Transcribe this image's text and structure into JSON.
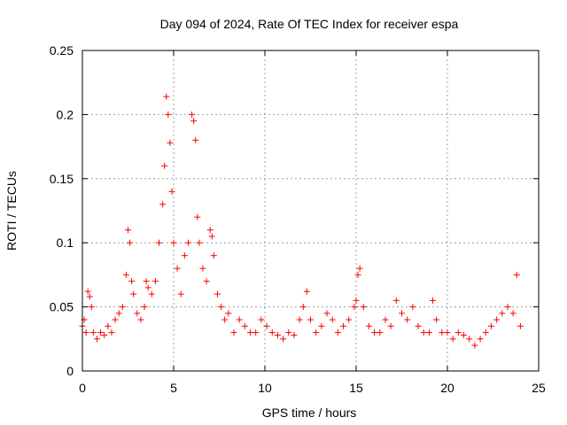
{
  "chart_data": {
    "type": "scatter",
    "title": "Day 094 of 2024, Rate Of TEC Index for receiver espa",
    "xlabel": "GPS time / hours",
    "ylabel": "ROTI / TECUs",
    "xlim": [
      0,
      25
    ],
    "ylim": [
      0,
      0.25
    ],
    "xticks": [
      "0",
      "5",
      "10",
      "15",
      "20",
      "25"
    ],
    "yticks": [
      "0",
      "0.05",
      "0.1",
      "0.15",
      "0.2",
      "0.25"
    ],
    "grid": true,
    "marker": "plus",
    "color": "#ff0000",
    "series": [
      {
        "x": [
          0.0,
          0.1,
          0.2,
          0.3,
          0.4,
          0.5,
          0.6,
          0.8,
          1.0,
          1.2,
          1.4,
          1.6,
          1.8,
          2.0,
          2.2,
          2.4,
          2.5,
          2.6,
          2.7,
          2.8,
          3.0,
          3.2,
          3.4,
          3.5,
          3.6,
          3.8,
          4.0,
          4.2,
          4.4,
          4.5,
          4.6,
          4.7,
          4.8,
          4.9,
          5.0,
          5.2,
          5.4,
          5.6,
          5.8,
          6.0,
          6.1,
          6.2,
          6.3,
          6.4,
          6.6,
          6.8,
          7.0,
          7.1,
          7.2,
          7.4,
          7.6,
          7.8,
          8.0,
          8.3,
          8.6,
          8.9,
          9.2,
          9.5,
          9.8,
          10.1,
          10.4,
          10.7,
          11.0,
          11.3,
          11.6,
          11.9,
          12.1,
          12.3,
          12.5,
          12.8,
          13.1,
          13.4,
          13.7,
          14.0,
          14.3,
          14.6,
          14.9,
          15.0,
          15.1,
          15.2,
          15.4,
          15.7,
          16.0,
          16.3,
          16.6,
          16.9,
          17.2,
          17.5,
          17.8,
          18.1,
          18.4,
          18.7,
          19.0,
          19.2,
          19.4,
          19.7,
          20.0,
          20.3,
          20.6,
          20.9,
          21.2,
          21.5,
          21.8,
          22.1,
          22.4,
          22.7,
          23.0,
          23.3,
          23.6,
          23.8,
          24.0
        ],
        "y": [
          0.035,
          0.04,
          0.03,
          0.062,
          0.058,
          0.05,
          0.03,
          0.025,
          0.03,
          0.028,
          0.035,
          0.03,
          0.04,
          0.045,
          0.05,
          0.075,
          0.11,
          0.1,
          0.07,
          0.06,
          0.045,
          0.04,
          0.05,
          0.07,
          0.065,
          0.06,
          0.07,
          0.1,
          0.13,
          0.16,
          0.214,
          0.2,
          0.178,
          0.14,
          0.1,
          0.08,
          0.06,
          0.09,
          0.1,
          0.2,
          0.195,
          0.18,
          0.12,
          0.1,
          0.08,
          0.07,
          0.11,
          0.105,
          0.09,
          0.06,
          0.05,
          0.04,
          0.045,
          0.03,
          0.04,
          0.035,
          0.03,
          0.03,
          0.04,
          0.035,
          0.03,
          0.028,
          0.025,
          0.03,
          0.028,
          0.04,
          0.05,
          0.062,
          0.04,
          0.03,
          0.035,
          0.045,
          0.04,
          0.03,
          0.035,
          0.04,
          0.05,
          0.055,
          0.075,
          0.08,
          0.05,
          0.035,
          0.03,
          0.03,
          0.04,
          0.035,
          0.055,
          0.045,
          0.04,
          0.05,
          0.035,
          0.03,
          0.03,
          0.055,
          0.04,
          0.03,
          0.03,
          0.025,
          0.03,
          0.028,
          0.025,
          0.02,
          0.025,
          0.03,
          0.035,
          0.04,
          0.045,
          0.05,
          0.045,
          0.075,
          0.035
        ]
      }
    ]
  }
}
